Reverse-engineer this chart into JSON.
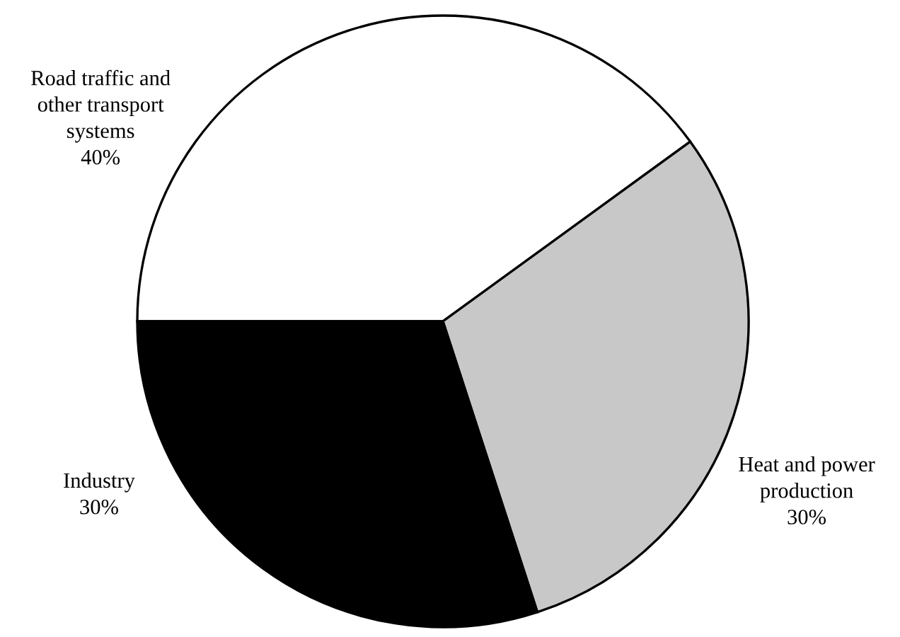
{
  "chart_data": {
    "type": "pie",
    "categories": [
      "Road traffic and\nother transport\nsystems",
      "Heat and power\nproduction",
      "Industry"
    ],
    "values": [
      40,
      30,
      30
    ],
    "value_labels": [
      "40%",
      "30%",
      "30%"
    ],
    "colors": [
      "#ffffff",
      "#c8c8c8",
      "#000000"
    ],
    "legend": false
  }
}
